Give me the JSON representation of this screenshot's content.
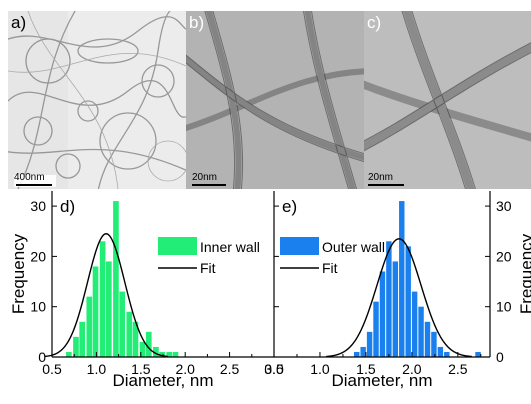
{
  "tem_panels": [
    {
      "label": "a)",
      "scale_bar": "400nm"
    },
    {
      "label": "b)",
      "scale_bar": "20nm"
    },
    {
      "label": "c)",
      "scale_bar": "20nm"
    }
  ],
  "chart_data": [
    {
      "type": "bar",
      "panel_label": "d)",
      "xlabel": "Diameter, nm",
      "ylabel": "Frequency",
      "xlim": [
        0.5,
        3.0
      ],
      "ylim": [
        0,
        33
      ],
      "xticks": [
        "0.5",
        "1.0",
        "1.5",
        "2.0",
        "2.5",
        "3.0"
      ],
      "yticks": [
        "0",
        "10",
        "20",
        "30"
      ],
      "legend": [
        "Inner wall",
        "Fit"
      ],
      "legend_position": "top-right",
      "color": "#22ee77",
      "bin_width": 0.075,
      "bins": [
        {
          "x": 0.69,
          "value": 1
        },
        {
          "x": 0.77,
          "value": 4
        },
        {
          "x": 0.84,
          "value": 7
        },
        {
          "x": 0.92,
          "value": 12
        },
        {
          "x": 0.99,
          "value": 18
        },
        {
          "x": 1.07,
          "value": 23
        },
        {
          "x": 1.14,
          "value": 19
        },
        {
          "x": 1.22,
          "value": 31
        },
        {
          "x": 1.29,
          "value": 13
        },
        {
          "x": 1.37,
          "value": 9
        },
        {
          "x": 1.44,
          "value": 7
        },
        {
          "x": 1.52,
          "value": 3
        },
        {
          "x": 1.59,
          "value": 5
        },
        {
          "x": 1.67,
          "value": 2
        },
        {
          "x": 1.74,
          "value": 1
        },
        {
          "x": 1.82,
          "value": 1
        },
        {
          "x": 1.89,
          "value": 1
        }
      ],
      "fit": {
        "center": 1.11,
        "sigma": 0.21,
        "amplitude": 24.5
      }
    },
    {
      "type": "bar",
      "panel_label": "e)",
      "xlabel": "Diameter, nm",
      "ylabel": "Frequency",
      "xlim": [
        0.5,
        2.85
      ],
      "ylim": [
        0,
        33
      ],
      "xticks": [
        "0.5",
        "1.0",
        "1.5",
        "2.0",
        "2.5"
      ],
      "yticks": [
        "0",
        "10",
        "20",
        "30"
      ],
      "legend": [
        "Outer wall",
        "Fit"
      ],
      "legend_position": "top-right",
      "color": "#1a80ee",
      "bin_width": 0.07,
      "bins": [
        {
          "x": 1.4,
          "value": 1
        },
        {
          "x": 1.47,
          "value": 2
        },
        {
          "x": 1.54,
          "value": 5
        },
        {
          "x": 1.61,
          "value": 11
        },
        {
          "x": 1.68,
          "value": 17
        },
        {
          "x": 1.75,
          "value": 23
        },
        {
          "x": 1.82,
          "value": 19
        },
        {
          "x": 1.89,
          "value": 31
        },
        {
          "x": 1.96,
          "value": 22
        },
        {
          "x": 2.03,
          "value": 13
        },
        {
          "x": 2.1,
          "value": 10
        },
        {
          "x": 2.17,
          "value": 7
        },
        {
          "x": 2.24,
          "value": 5
        },
        {
          "x": 2.31,
          "value": 2
        },
        {
          "x": 2.38,
          "value": 1
        },
        {
          "x": 2.72,
          "value": 1
        }
      ],
      "fit": {
        "center": 1.86,
        "sigma": 0.24,
        "amplitude": 23.5
      }
    }
  ]
}
